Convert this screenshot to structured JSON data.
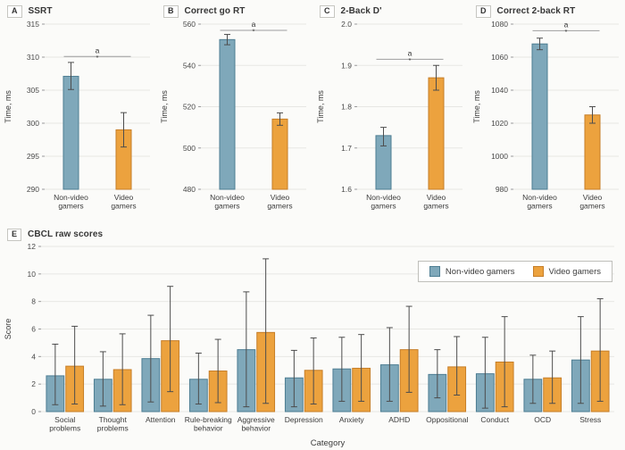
{
  "colors": {
    "nonvideo": "#7FA8BA",
    "nonvideo_border": "#4E7E93",
    "video": "#ECA23E",
    "video_border": "#C67E28",
    "error": "#4D4D4D",
    "grid": "#E7E7E4",
    "tick": "#9A9A9A",
    "sig_line": "#9E9E9E",
    "text": "#3C3C3C"
  },
  "legend": {
    "items": [
      {
        "label": "Non-video gamers",
        "color": "nonvideo"
      },
      {
        "label": "Video gamers",
        "color": "video"
      }
    ]
  },
  "chart_data": [
    {
      "type": "bar",
      "panel_label": "A",
      "title": "SSRT",
      "ylabel": "Time, ms",
      "ylim": [
        290,
        315
      ],
      "yticks": [
        "290",
        "295",
        "300",
        "305",
        "310",
        "315"
      ],
      "categories": [
        "Non-video\ngamers",
        "Video\ngamers"
      ],
      "bars": [
        {
          "group": "Non-video gamers",
          "value": 307.1,
          "err": [
            305.1,
            309.2
          ],
          "color": "nonvideo"
        },
        {
          "group": "Video gamers",
          "value": 299.0,
          "err": [
            296.4,
            301.6
          ],
          "color": "video"
        }
      ],
      "significance": {
        "y": 310.1,
        "label": "a",
        "marker": "*"
      },
      "grid": true
    },
    {
      "type": "bar",
      "panel_label": "B",
      "title": "Correct go RT",
      "ylabel": "Time, ms",
      "ylim": [
        480,
        560
      ],
      "yticks": [
        "480",
        "500",
        "520",
        "540",
        "560"
      ],
      "categories": [
        "Non-video\ngamers",
        "Video\ngamers"
      ],
      "bars": [
        {
          "group": "Non-video gamers",
          "value": 552.5,
          "err": [
            550.0,
            555.0
          ],
          "color": "nonvideo"
        },
        {
          "group": "Video gamers",
          "value": 514.0,
          "err": [
            511.0,
            517.0
          ],
          "color": "video"
        }
      ],
      "significance": {
        "y": 557,
        "label": "a",
        "marker": "*"
      },
      "grid": true
    },
    {
      "type": "bar",
      "panel_label": "C",
      "title": "2-Back D'",
      "ylabel": "Time, ms",
      "ylim": [
        1.6,
        2.0
      ],
      "yticks": [
        "1.6",
        "1.7",
        "1.8",
        "1.9",
        "2.0"
      ],
      "categories": [
        "Non-video\ngamers",
        "Video\ngamers"
      ],
      "bars": [
        {
          "group": "Non-video gamers",
          "value": 1.73,
          "err": [
            1.705,
            1.75
          ],
          "color": "nonvideo"
        },
        {
          "group": "Video gamers",
          "value": 1.87,
          "err": [
            1.84,
            1.9
          ],
          "color": "video"
        }
      ],
      "significance": {
        "y": 1.915,
        "label": "a",
        "marker": "*"
      },
      "grid": true
    },
    {
      "type": "bar",
      "panel_label": "D",
      "title": "Correct 2-back RT",
      "ylabel": "Time, ms",
      "ylim": [
        980,
        1080
      ],
      "yticks": [
        "980",
        "1000",
        "1020",
        "1040",
        "1060",
        "1080"
      ],
      "categories": [
        "Non-video\ngamers",
        "Video\ngamers"
      ],
      "bars": [
        {
          "group": "Non-video gamers",
          "value": 1068,
          "err": [
            1064.5,
            1071.5
          ],
          "color": "nonvideo"
        },
        {
          "group": "Video gamers",
          "value": 1025,
          "err": [
            1020,
            1030
          ],
          "color": "video"
        }
      ],
      "significance": {
        "y": 1076,
        "label": "a",
        "marker": "*"
      },
      "grid": true
    },
    {
      "type": "bar",
      "panel_label": "E",
      "title": "CBCL raw scores",
      "ylabel": "Score",
      "xlabel": "Category",
      "ylim": [
        0,
        12
      ],
      "yticks": [
        "0",
        "2",
        "4",
        "6",
        "8",
        "10",
        "12"
      ],
      "categories": [
        "Social\nproblems",
        "Thought\nproblems",
        "Attention",
        "Rule-breaking\nbehavior",
        "Aggressive\nbehavior",
        "Depression",
        "Anxiety",
        "ADHD",
        "Oppositional",
        "Conduct",
        "OCD",
        "Stress"
      ],
      "series": [
        {
          "name": "Non-video gamers",
          "color": "nonvideo",
          "values": [
            2.6,
            2.35,
            3.85,
            2.35,
            4.5,
            2.45,
            3.1,
            3.4,
            2.7,
            2.75,
            2.35,
            3.75
          ],
          "errors": [
            [
              0.5,
              4.9
            ],
            [
              0.4,
              4.35
            ],
            [
              0.7,
              7.0
            ],
            [
              0.55,
              4.25
            ],
            [
              0.35,
              8.7
            ],
            [
              0.35,
              4.45
            ],
            [
              0.75,
              5.4
            ],
            [
              0.75,
              6.1
            ],
            [
              1.0,
              4.5
            ],
            [
              0.25,
              5.4
            ],
            [
              0.6,
              4.1
            ],
            [
              0.6,
              6.9
            ]
          ]
        },
        {
          "name": "Video gamers",
          "color": "video",
          "values": [
            3.3,
            3.05,
            5.15,
            2.95,
            5.75,
            3.0,
            3.15,
            4.5,
            3.25,
            3.6,
            2.45,
            4.4
          ],
          "errors": [
            [
              0.55,
              6.2
            ],
            [
              0.5,
              5.65
            ],
            [
              1.45,
              9.1
            ],
            [
              0.65,
              5.25
            ],
            [
              0.6,
              11.1
            ],
            [
              0.55,
              5.35
            ],
            [
              0.75,
              5.6
            ],
            [
              1.4,
              7.65
            ],
            [
              1.2,
              5.45
            ],
            [
              0.35,
              6.9
            ],
            [
              0.6,
              4.4
            ],
            [
              0.75,
              8.2
            ]
          ]
        }
      ],
      "grid": true,
      "legend_position": "top-right"
    }
  ]
}
